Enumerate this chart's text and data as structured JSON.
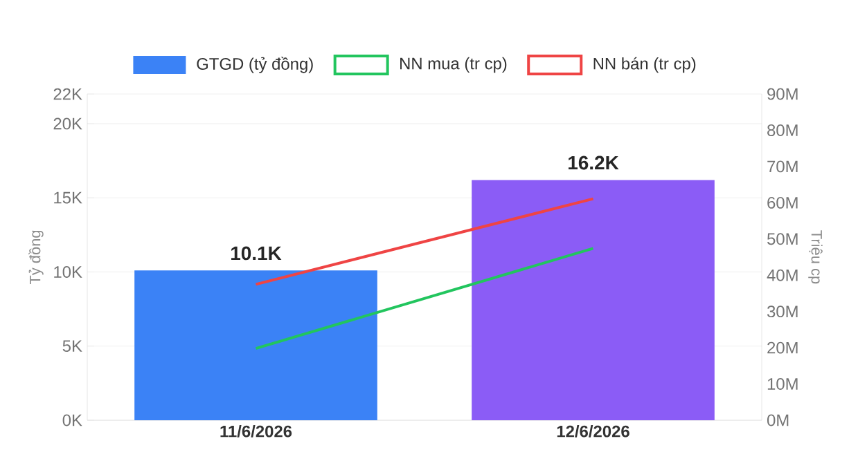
{
  "chart_data": {
    "type": "bar",
    "categories": [
      "11/6/2026",
      "12/6/2026"
    ],
    "series": [
      {
        "name": "GTGD (tỷ đồng)",
        "colors": [
          "#3b82f6",
          "#8b5cf6"
        ],
        "values": [
          10100,
          16200
        ],
        "value_labels": [
          "10.1K",
          "16.2K"
        ]
      },
      {
        "name": "NN mua (tr cp)",
        "type": "line",
        "axis": "y2",
        "color": "#22c55e",
        "values": [
          19.8,
          47.4
        ]
      },
      {
        "name": "NN bán (tr cp)",
        "type": "line",
        "axis": "y2",
        "color": "#ef4444",
        "values": [
          37.5,
          61.1
        ]
      }
    ],
    "ylabel": "Tỷ đồng",
    "y2label": "Triệu cp",
    "ylim": [
      0,
      22000
    ],
    "yticks": [
      {
        "value": 0,
        "label": "0K"
      },
      {
        "value": 5000,
        "label": "5K"
      },
      {
        "value": 10000,
        "label": "10K"
      },
      {
        "value": 15000,
        "label": "15K"
      },
      {
        "value": 20000,
        "label": "20K"
      },
      {
        "value": 22000,
        "label": "22K"
      }
    ],
    "y2lim": [
      0,
      90
    ],
    "y2ticks": [
      {
        "value": 0,
        "label": "0M"
      },
      {
        "value": 10,
        "label": "10M"
      },
      {
        "value": 20,
        "label": "20M"
      },
      {
        "value": 30,
        "label": "30M"
      },
      {
        "value": 40,
        "label": "40M"
      },
      {
        "value": 50,
        "label": "50M"
      },
      {
        "value": 60,
        "label": "60M"
      },
      {
        "value": 70,
        "label": "70M"
      },
      {
        "value": 80,
        "label": "80M"
      },
      {
        "value": 90,
        "label": "90M"
      }
    ],
    "grid": "y",
    "legend": "top",
    "marker": "none",
    "line_style": "solid"
  }
}
